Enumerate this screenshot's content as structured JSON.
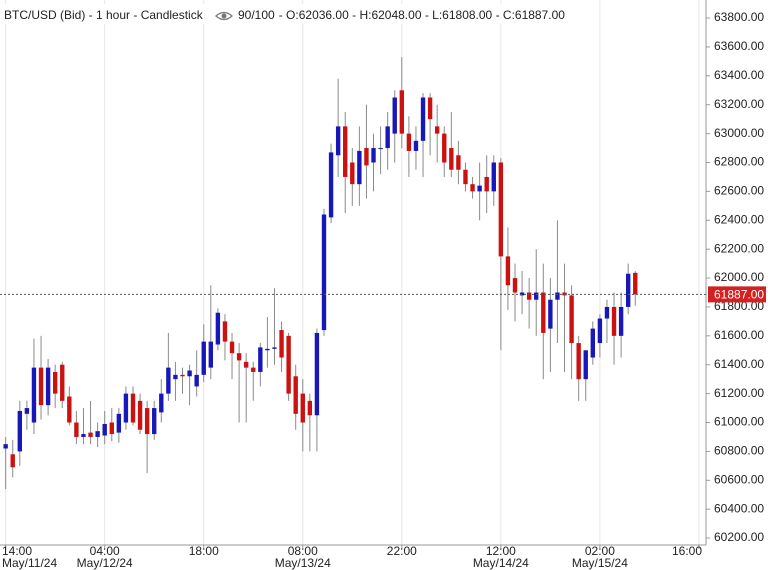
{
  "chart_data": {
    "type": "candlestick",
    "title": "BTC/USD (Bid) - 1 hour - Candlestick",
    "count_label": "90/100",
    "last_quote": {
      "open": {
        "value": 62036,
        "label": "O:62036.00"
      },
      "high": {
        "value": 62048,
        "label": "H:62048.00"
      },
      "low": {
        "value": 61808,
        "label": "L:61808.00"
      },
      "close": {
        "value": 61887,
        "label": "C:61887.00"
      }
    },
    "current_price": {
      "value": 61887,
      "label": "61887.00"
    },
    "up_color": "#1818b8",
    "down_color": "#cc1111",
    "wick_color": "#8a8a8a",
    "price_color": "#d42020",
    "grid": true,
    "open": [
      60820,
      60780,
      60800,
      61060,
      61000,
      61380,
      61120,
      61350,
      61400,
      61180,
      61000,
      60900,
      60930,
      60900,
      60910,
      61000,
      60930,
      61000,
      61200,
      61150,
      61100,
      60920,
      61070,
      61200,
      61300,
      61330,
      61320,
      61250,
      61330,
      61380,
      61540,
      61700,
      61560,
      61480,
      61420,
      61380,
      61350,
      61500,
      61510,
      61640,
      61600,
      61320,
      61200,
      61150,
      61050,
      61640,
      62420,
      62850,
      63050,
      62800,
      62650,
      62900,
      62800,
      62900,
      62900,
      63000,
      63300,
      63000,
      62880,
      62950,
      63250,
      63050,
      63000,
      62900,
      62850,
      62750,
      62650,
      62600,
      62700,
      62600,
      62800,
      62150,
      62000,
      61880,
      61900,
      61850,
      61900,
      61650,
      61850,
      61900,
      61880,
      61550,
      61300,
      61450,
      61550,
      61720,
      61800,
      61600,
      61800,
      62036
    ],
    "high": [
      60900,
      60880,
      61150,
      61150,
      61580,
      61600,
      61440,
      61400,
      61420,
      61250,
      61080,
      61100,
      61150,
      61000,
      61080,
      61100,
      61100,
      61250,
      61250,
      61200,
      61150,
      61150,
      61300,
      61620,
      61420,
      61380,
      61400,
      61500,
      61680,
      61950,
      61790,
      61750,
      61620,
      61550,
      61480,
      61420,
      61550,
      61730,
      61930,
      61700,
      61620,
      61400,
      61300,
      61200,
      61650,
      62480,
      62930,
      63380,
      63150,
      62900,
      63050,
      63200,
      63000,
      63050,
      63150,
      63300,
      63530,
      63120,
      63050,
      63280,
      63280,
      63200,
      63050,
      63150,
      62950,
      62800,
      62700,
      62800,
      62850,
      62850,
      62830,
      62350,
      62100,
      62050,
      62000,
      62200,
      62100,
      62000,
      62400,
      62100,
      61950,
      61600,
      61500,
      61700,
      61750,
      61850,
      61900,
      61900,
      62100,
      62048
    ],
    "low": [
      60540,
      60620,
      60700,
      60950,
      60920,
      61020,
      61050,
      61100,
      61100,
      60980,
      60850,
      60850,
      60850,
      60830,
      60850,
      60870,
      60860,
      60950,
      60980,
      60920,
      60650,
      60880,
      61000,
      61150,
      61150,
      61200,
      61120,
      61180,
      61280,
      61300,
      61500,
      61430,
      61300,
      61000,
      61000,
      61150,
      61250,
      61380,
      61400,
      61350,
      61150,
      60950,
      60800,
      60800,
      60800,
      61600,
      62380,
      62700,
      62450,
      62500,
      62500,
      62550,
      62600,
      62720,
      62750,
      62800,
      62900,
      62700,
      62750,
      62700,
      62850,
      62800,
      62700,
      62700,
      62650,
      62600,
      62550,
      62400,
      62450,
      62500,
      61500,
      61780,
      61700,
      61750,
      61650,
      61600,
      61300,
      61350,
      61550,
      61350,
      61300,
      61150,
      61150,
      61400,
      61450,
      61550,
      61400,
      61450,
      61750,
      61808
    ],
    "close": [
      60850,
      60690,
      61080,
      61100,
      61380,
      61120,
      61380,
      61200,
      61150,
      61000,
      60900,
      60920,
      60900,
      60940,
      60990,
      60920,
      61060,
      61200,
      61000,
      60950,
      60920,
      61100,
      61200,
      61380,
      61330,
      61320,
      61360,
      61330,
      61560,
      61560,
      61760,
      61560,
      61480,
      61430,
      61380,
      61350,
      61520,
      61510,
      61520,
      61450,
      61200,
      61060,
      61000,
      61050,
      61620,
      62440,
      62870,
      63050,
      62700,
      62650,
      62880,
      62780,
      62900,
      62900,
      63050,
      63250,
      63000,
      62880,
      62950,
      63250,
      63100,
      63000,
      62800,
      62750,
      62750,
      62650,
      62600,
      62640,
      62600,
      62800,
      62150,
      61950,
      61900,
      61900,
      61850,
      61900,
      61620,
      61850,
      61900,
      61880,
      61550,
      61300,
      61500,
      61650,
      61720,
      61800,
      61600,
      61800,
      62030,
      61887
    ],
    "xlim": [
      -0.8,
      99
    ],
    "xticks": [
      {
        "value": 0,
        "label": "14:00"
      },
      {
        "value": 14,
        "label": "04:00"
      },
      {
        "value": 28,
        "label": "18:00"
      },
      {
        "value": 42,
        "label": "08:00"
      },
      {
        "value": 56,
        "label": "22:00"
      },
      {
        "value": 70,
        "label": "12:00"
      },
      {
        "value": 84,
        "label": "02:00"
      },
      {
        "value": 98,
        "label": "16:00"
      }
    ],
    "xdates": [
      {
        "value": 0,
        "label": "May/11/24"
      },
      {
        "value": 14,
        "label": "May/12/24"
      },
      {
        "value": 42,
        "label": "May/13/24"
      },
      {
        "value": 70,
        "label": "May/14/24"
      },
      {
        "value": 84,
        "label": "May/15/24"
      }
    ],
    "ylim": [
      60152,
      63925
    ],
    "yticks": [
      {
        "value": 60200,
        "label": "60200.00"
      },
      {
        "value": 60400,
        "label": "60400.00"
      },
      {
        "value": 60600,
        "label": "60600.00"
      },
      {
        "value": 60800,
        "label": "60800.00"
      },
      {
        "value": 61000,
        "label": "61000.00"
      },
      {
        "value": 61200,
        "label": "61200.00"
      },
      {
        "value": 61400,
        "label": "61400.00"
      },
      {
        "value": 61600,
        "label": "61600.00"
      },
      {
        "value": 61800,
        "label": "61800.00"
      },
      {
        "value": 62000,
        "label": "62000.00"
      },
      {
        "value": 62200,
        "label": "62200.00"
      },
      {
        "value": 62400,
        "label": "62400.00"
      },
      {
        "value": 62600,
        "label": "62600.00"
      },
      {
        "value": 62800,
        "label": "62800.00"
      },
      {
        "value": 63000,
        "label": "63000.00"
      },
      {
        "value": 63200,
        "label": "63200.00"
      },
      {
        "value": 63400,
        "label": "63400.00"
      },
      {
        "value": 63600,
        "label": "63600.00"
      },
      {
        "value": 63800,
        "label": "63800.00"
      }
    ]
  }
}
